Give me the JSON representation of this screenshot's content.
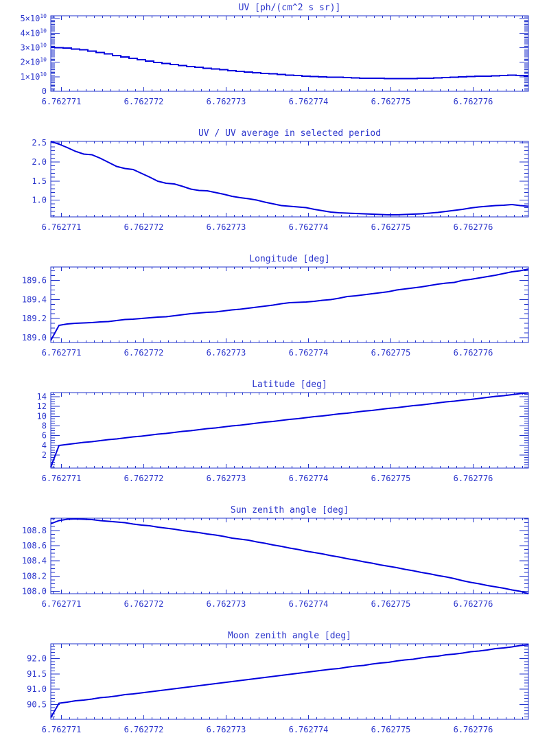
{
  "page": {
    "background": "#ffffff"
  },
  "colors": {
    "line": "#0000dd",
    "axis": "#2233cc",
    "text": "#2b35cc"
  },
  "chart_data": {
    "x_axis": {
      "range": [
        6.76277087,
        6.76277667
      ],
      "major_ticks": [
        6.762771,
        6.762772,
        6.762773,
        6.762774,
        6.762775,
        6.762776
      ],
      "tick_labels": [
        "6.762771",
        "6.762772",
        "6.762773",
        "6.762774",
        "6.762775",
        "6.762776"
      ],
      "minor_step": 1e-07,
      "x_start": 6.76277087,
      "x_step": 1e-07
    },
    "plots": [
      {
        "id": "uv",
        "type": "step",
        "title": "UV [ph/(cm^2 s sr)]",
        "y_unit": "1e10 ph/(cm^2 s sr)",
        "y_range": [
          0,
          5.2
        ],
        "y_major_ticks": [
          0,
          1,
          2,
          3,
          4,
          5
        ],
        "y_tick_labels": [
          "0",
          "1×10^10",
          "2×10^10",
          "3×10^10",
          "4×10^10",
          "5×10^10"
        ],
        "y_minor_step": 0.1,
        "values": [
          3.02,
          3.0,
          2.97,
          2.91,
          2.86,
          2.76,
          2.66,
          2.57,
          2.47,
          2.37,
          2.27,
          2.18,
          2.08,
          1.99,
          1.92,
          1.85,
          1.78,
          1.71,
          1.65,
          1.59,
          1.53,
          1.48,
          1.43,
          1.38,
          1.33,
          1.28,
          1.24,
          1.2,
          1.16,
          1.12,
          1.09,
          1.05,
          1.02,
          1.0,
          0.98,
          0.96,
          0.94,
          0.92,
          0.91,
          0.9,
          0.89,
          0.88,
          0.87,
          0.87,
          0.88,
          0.89,
          0.9,
          0.92,
          0.94,
          0.96,
          0.99,
          1.01,
          1.03,
          1.05,
          1.07,
          1.09,
          1.11,
          1.09,
          1.05
        ]
      },
      {
        "id": "uv_ratio",
        "type": "line",
        "title": "UV / UV average in selected period",
        "y_unit": "ratio",
        "y_range": [
          0.56,
          2.54
        ],
        "y_major_ticks": [
          1.0,
          1.5,
          2.0,
          2.5
        ],
        "y_tick_labels": [
          "1.0",
          "1.5",
          "2.0",
          "2.5"
        ],
        "y_minor_step": 0.1,
        "values": [
          2.54,
          2.47,
          2.38,
          2.28,
          2.21,
          2.19,
          2.1,
          1.99,
          1.88,
          1.83,
          1.8,
          1.7,
          1.6,
          1.5,
          1.44,
          1.42,
          1.36,
          1.29,
          1.25,
          1.24,
          1.2,
          1.15,
          1.1,
          1.06,
          1.04,
          1.0,
          0.95,
          0.9,
          0.86,
          0.84,
          0.82,
          0.8,
          0.76,
          0.72,
          0.69,
          0.67,
          0.66,
          0.65,
          0.64,
          0.63,
          0.62,
          0.61,
          0.61,
          0.62,
          0.63,
          0.64,
          0.66,
          0.68,
          0.7,
          0.73,
          0.76,
          0.79,
          0.82,
          0.84,
          0.86,
          0.87,
          0.88,
          0.86,
          0.84
        ]
      },
      {
        "id": "longitude",
        "type": "line",
        "title": "Longitude [deg]",
        "y_unit": "deg",
        "y_range": [
          188.95,
          189.74
        ],
        "y_major_ticks": [
          189.0,
          189.2,
          189.4,
          189.6
        ],
        "y_tick_labels": [
          "189.0",
          "189.2",
          "189.4",
          "189.6"
        ],
        "y_minor_step": 0.05,
        "values": [
          188.97,
          189.13,
          189.145,
          189.15,
          189.155,
          189.16,
          189.165,
          189.17,
          189.18,
          189.19,
          189.195,
          189.2,
          189.21,
          189.215,
          189.22,
          189.23,
          189.24,
          189.25,
          189.26,
          189.265,
          189.27,
          189.28,
          189.29,
          189.3,
          189.31,
          189.32,
          189.33,
          189.34,
          189.355,
          189.365,
          189.37,
          189.375,
          189.38,
          189.39,
          189.4,
          189.415,
          189.43,
          189.44,
          189.45,
          189.46,
          189.47,
          189.48,
          189.5,
          189.51,
          189.52,
          189.53,
          189.545,
          189.56,
          189.57,
          189.58,
          189.6,
          189.61,
          189.625,
          189.64,
          189.655,
          189.67,
          189.69,
          189.7,
          189.72
        ]
      },
      {
        "id": "latitude",
        "type": "line",
        "title": "Latitude [deg]",
        "y_unit": "deg",
        "y_range": [
          -0.7,
          14.85
        ],
        "y_major_ticks": [
          2,
          4,
          6,
          8,
          10,
          12,
          14
        ],
        "y_tick_labels": [
          "2",
          "4",
          "6",
          "8",
          "10",
          "12",
          "14"
        ],
        "y_minor_step": 0.5,
        "values": [
          -0.5,
          4.0,
          4.19,
          4.38,
          4.57,
          4.76,
          4.95,
          5.14,
          5.33,
          5.52,
          5.71,
          5.89,
          6.08,
          6.27,
          6.46,
          6.65,
          6.84,
          7.03,
          7.22,
          7.41,
          7.6,
          7.79,
          7.98,
          8.17,
          8.36,
          8.55,
          8.74,
          8.93,
          9.12,
          9.31,
          9.49,
          9.68,
          9.87,
          10.06,
          10.25,
          10.44,
          10.63,
          10.82,
          11.01,
          11.2,
          11.39,
          11.58,
          11.77,
          11.96,
          12.15,
          12.34,
          12.53,
          12.72,
          12.91,
          13.09,
          13.28,
          13.47,
          13.66,
          13.85,
          14.04,
          14.23,
          14.42,
          14.61,
          14.8
        ]
      },
      {
        "id": "sun_zenith",
        "type": "line",
        "title": "Sun zenith angle [deg]",
        "y_unit": "deg",
        "y_range": [
          107.97,
          108.96
        ],
        "y_major_ticks": [
          108.0,
          108.2,
          108.4,
          108.6,
          108.8
        ],
        "y_tick_labels": [
          "108.0",
          "108.2",
          "108.4",
          "108.6",
          "108.8"
        ],
        "y_minor_step": 0.05,
        "values": [
          108.89,
          108.93,
          108.945,
          108.95,
          108.945,
          108.94,
          108.93,
          108.92,
          108.91,
          108.9,
          108.885,
          108.87,
          108.86,
          108.845,
          108.83,
          108.815,
          108.8,
          108.785,
          108.77,
          108.755,
          108.74,
          108.72,
          108.7,
          108.685,
          108.67,
          108.65,
          108.63,
          108.61,
          108.59,
          108.57,
          108.55,
          108.53,
          108.51,
          108.49,
          108.47,
          108.45,
          108.43,
          108.41,
          108.39,
          108.37,
          108.35,
          108.33,
          108.31,
          108.29,
          108.27,
          108.25,
          108.23,
          108.21,
          108.19,
          108.17,
          108.14,
          108.12,
          108.1,
          108.08,
          108.06,
          108.04,
          108.02,
          108.0,
          107.97
        ]
      },
      {
        "id": "moon_zenith",
        "type": "line",
        "title": "Moon zenith angle [deg]",
        "y_unit": "deg",
        "y_range": [
          90.02,
          92.48
        ],
        "y_major_ticks": [
          90.5,
          91.0,
          91.5,
          92.0
        ],
        "y_tick_labels": [
          "90.5",
          "91.0",
          "91.5",
          "92.0"
        ],
        "y_minor_step": 0.1,
        "values": [
          90.08,
          90.55,
          90.58,
          90.62,
          90.65,
          90.68,
          90.72,
          90.75,
          90.78,
          90.82,
          90.85,
          90.88,
          90.92,
          90.95,
          90.98,
          91.02,
          91.05,
          91.08,
          91.12,
          91.15,
          91.18,
          91.22,
          91.25,
          91.28,
          91.32,
          91.35,
          91.38,
          91.42,
          91.45,
          91.48,
          91.52,
          91.55,
          91.58,
          91.62,
          91.65,
          91.68,
          91.72,
          91.75,
          91.78,
          91.82,
          91.85,
          91.88,
          91.92,
          91.95,
          91.98,
          92.02,
          92.05,
          92.08,
          92.12,
          92.15,
          92.18,
          92.22,
          92.25,
          92.28,
          92.32,
          92.35,
          92.38,
          92.42,
          92.45
        ]
      }
    ]
  }
}
